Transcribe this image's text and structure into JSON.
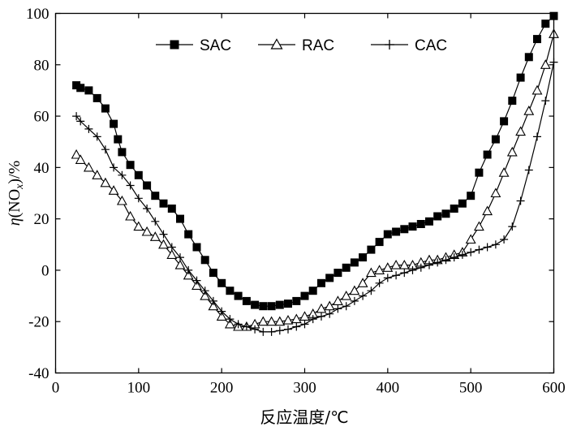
{
  "chart_data": {
    "type": "line",
    "xlabel": "反应温度/℃",
    "ylabel_parts": {
      "eta": "η",
      "open": "(NO",
      "sub": "x",
      "close": ")/%"
    },
    "xlim": [
      0,
      600
    ],
    "ylim": [
      -40,
      100
    ],
    "xticks": [
      0,
      100,
      200,
      300,
      400,
      500,
      600
    ],
    "yticks": [
      -40,
      -20,
      0,
      20,
      40,
      60,
      80,
      100
    ],
    "grid": false,
    "legend_position": "top",
    "series": [
      {
        "name": "SAC",
        "marker": "filled-square",
        "x": [
          25,
          30,
          40,
          50,
          60,
          70,
          75,
          80,
          90,
          100,
          110,
          120,
          130,
          140,
          150,
          160,
          170,
          180,
          190,
          200,
          210,
          220,
          230,
          240,
          250,
          260,
          270,
          280,
          290,
          300,
          310,
          320,
          330,
          340,
          350,
          360,
          370,
          380,
          390,
          400,
          410,
          420,
          430,
          440,
          450,
          460,
          470,
          480,
          490,
          500,
          510,
          520,
          530,
          540,
          550,
          560,
          570,
          580,
          590,
          600
        ],
        "y": [
          72,
          71,
          70,
          67,
          63,
          57,
          51,
          46,
          41,
          37,
          33,
          29,
          26,
          24,
          20,
          14,
          9,
          4,
          -1,
          -5,
          -8,
          -10,
          -12,
          -13.5,
          -14,
          -14,
          -13.5,
          -13,
          -12,
          -10,
          -8,
          -5,
          -3,
          -1,
          1,
          3,
          5,
          8,
          11,
          14,
          15,
          16,
          17,
          18,
          19,
          21,
          22,
          24,
          26,
          29,
          38,
          45,
          51,
          58,
          66,
          75,
          83,
          90,
          96,
          99
        ]
      },
      {
        "name": "RAC",
        "marker": "hollow-triangle",
        "x": [
          25,
          30,
          40,
          50,
          60,
          70,
          80,
          90,
          100,
          110,
          120,
          130,
          140,
          150,
          160,
          170,
          180,
          190,
          200,
          210,
          220,
          230,
          240,
          250,
          260,
          270,
          280,
          290,
          300,
          310,
          320,
          330,
          340,
          350,
          360,
          370,
          380,
          390,
          400,
          410,
          420,
          430,
          440,
          450,
          460,
          470,
          480,
          490,
          500,
          510,
          520,
          530,
          540,
          550,
          560,
          570,
          580,
          590,
          600
        ],
        "y": [
          45,
          43,
          40,
          37,
          34,
          31,
          27,
          21,
          17,
          15,
          13,
          10,
          6,
          2,
          -2,
          -6,
          -10,
          -14,
          -18,
          -21,
          -22,
          -22,
          -21,
          -20,
          -20,
          -20,
          -19.5,
          -19,
          -18,
          -17,
          -15,
          -14,
          -12,
          -10,
          -8,
          -5,
          -1,
          0,
          1,
          2,
          2,
          2,
          3,
          4,
          4,
          5,
          6,
          7,
          12,
          17,
          23,
          30,
          38,
          46,
          54,
          62,
          70,
          80,
          92
        ]
      },
      {
        "name": "CAC",
        "marker": "plus",
        "x": [
          25,
          30,
          40,
          50,
          60,
          70,
          80,
          90,
          100,
          110,
          120,
          130,
          140,
          150,
          160,
          170,
          180,
          190,
          200,
          210,
          220,
          230,
          240,
          250,
          260,
          270,
          280,
          290,
          300,
          310,
          320,
          330,
          340,
          350,
          360,
          370,
          380,
          390,
          400,
          410,
          420,
          430,
          440,
          450,
          460,
          470,
          480,
          490,
          500,
          510,
          520,
          530,
          540,
          550,
          560,
          570,
          580,
          590,
          600
        ],
        "y": [
          60,
          58,
          55,
          52,
          47,
          40,
          37,
          33,
          28,
          24,
          19,
          14,
          9,
          5,
          0,
          -4,
          -8,
          -12,
          -16,
          -19,
          -21,
          -22,
          -23,
          -24,
          -24,
          -23.5,
          -23,
          -22,
          -21,
          -19,
          -18,
          -17,
          -15,
          -14,
          -12,
          -10,
          -8,
          -5,
          -3,
          -2,
          -1,
          0,
          1,
          2,
          3,
          4,
          5,
          6,
          7,
          8,
          9,
          10,
          12,
          17,
          27,
          39,
          52,
          66,
          81
        ]
      }
    ]
  }
}
